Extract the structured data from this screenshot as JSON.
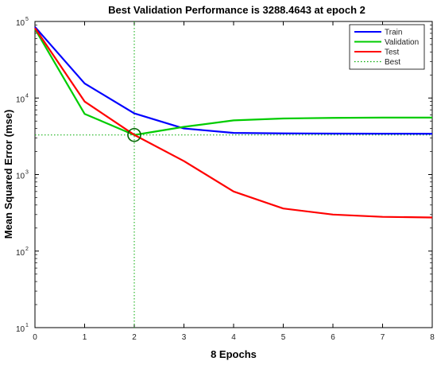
{
  "chart_data": {
    "type": "line",
    "title": "Best Validation Performance is 3288.4643 at epoch 2",
    "xlabel": "8 Epochs",
    "ylabel": "Mean Squared Error  (mse)",
    "yscale": "log",
    "xlim": [
      0,
      8
    ],
    "ylim": [
      10,
      100000
    ],
    "x_ticks": [
      "0",
      "1",
      "2",
      "3",
      "4",
      "5",
      "6",
      "7",
      "8"
    ],
    "y_ticks": [
      {
        "base": "10",
        "exp": "1",
        "value": 10
      },
      {
        "base": "10",
        "exp": "2",
        "value": 100
      },
      {
        "base": "10",
        "exp": "3",
        "value": 1000
      },
      {
        "base": "10",
        "exp": "4",
        "value": 10000
      },
      {
        "base": "10",
        "exp": "5",
        "value": 100000
      }
    ],
    "grid": false,
    "legend_position": "top-right",
    "x": [
      0,
      1,
      2,
      3,
      4,
      5,
      6,
      7,
      8
    ],
    "series": [
      {
        "name": "Train",
        "color": "#0000ff",
        "style": "solid",
        "values": [
          85000,
          15500,
          6300,
          4000,
          3500,
          3450,
          3430,
          3420,
          3410
        ]
      },
      {
        "name": "Validation",
        "color": "#00cc00",
        "style": "solid",
        "values": [
          80000,
          6200,
          3288.4643,
          4200,
          5100,
          5400,
          5500,
          5550,
          5550
        ]
      },
      {
        "name": "Test",
        "color": "#ff0000",
        "style": "solid",
        "values": [
          82000,
          9000,
          3300,
          1500,
          600,
          360,
          300,
          280,
          275
        ]
      }
    ],
    "best": {
      "name": "Best",
      "color": "#00aa00",
      "style": "dotted",
      "epoch": 2,
      "value": 3288.4643
    }
  }
}
